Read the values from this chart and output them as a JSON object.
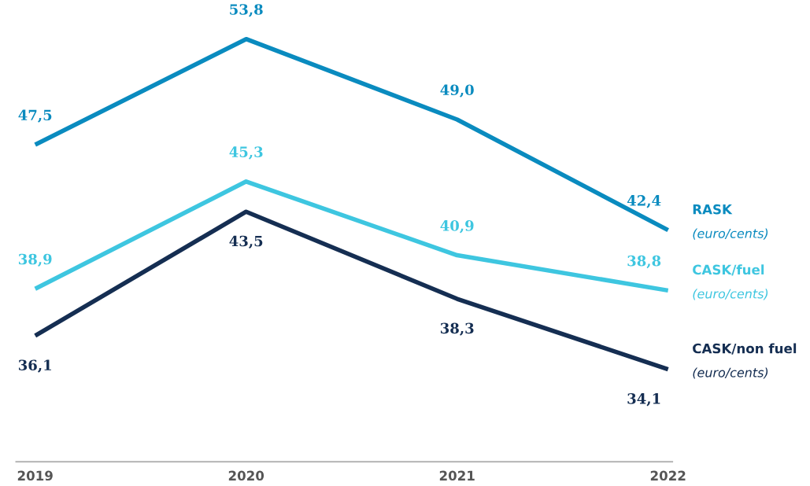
{
  "chart_data": {
    "type": "line",
    "categories": [
      "2019",
      "2020",
      "2021",
      "2022"
    ],
    "series": [
      {
        "name": "RASK\n(euro/cents)",
        "color": "#0a8bbf",
        "values": [
          47.5,
          53.8,
          49.0,
          42.4
        ],
        "value_labels": [
          "47,5",
          "53,8",
          "49,0",
          "42,4"
        ]
      },
      {
        "name": "CASK/fuel\n(euro/cents)",
        "color": "#3ec6e0",
        "values": [
          38.9,
          45.3,
          40.9,
          38.8
        ],
        "value_labels": [
          "38,9",
          "45,3",
          "40,9",
          "38,8"
        ]
      },
      {
        "name": "CASK/non fuel\n(euro/cents)",
        "color": "#152e52",
        "values": [
          36.1,
          43.5,
          38.3,
          34.1
        ],
        "value_labels": [
          "36,1",
          "43,5",
          "38,3",
          "34,1"
        ]
      }
    ],
    "grid": false,
    "legend": false,
    "marker": "none",
    "line_style": "solid",
    "tick_labels": "x"
  }
}
